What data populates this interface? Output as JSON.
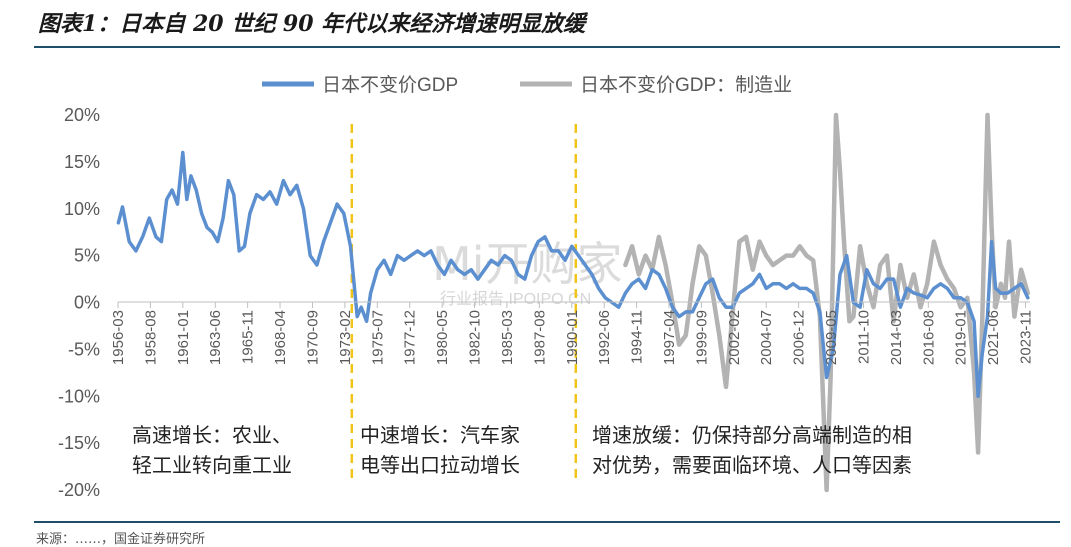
{
  "figure_title": "图表1：日本自 20 世纪 90 年代以来经济增速明显放缓",
  "source_text": "来源：……，国金证券研究所",
  "watermark": {
    "main": "Mi开购家",
    "sub": "行业报告 IPOIPO.CN"
  },
  "colors": {
    "series_gdp": "#5b8fd0",
    "series_mfg": "#b3b3b3",
    "divider": "#f0c419",
    "rule": "#1f4e6b"
  },
  "chart_data": {
    "type": "line",
    "title": "",
    "xlabel": "",
    "ylabel": "",
    "ylim": [
      -20,
      20
    ],
    "y_ticks": [
      "20%",
      "15%",
      "10%",
      "5%",
      "0%",
      "-5%",
      "-10%",
      "-15%",
      "-20%"
    ],
    "x_ticks": [
      "1956-03",
      "1958-08",
      "1961-01",
      "1963-06",
      "1965-11",
      "1968-04",
      "1970-09",
      "1973-02",
      "1975-07",
      "1977-12",
      "1980-05",
      "1982-10",
      "1985-03",
      "1987-08",
      "1990-01",
      "1992-06",
      "1994-11",
      "1997-04",
      "1999-09",
      "2002-02",
      "2004-07",
      "2006-12",
      "2009-05",
      "2011-10",
      "2014-03",
      "2016-08",
      "2019-01",
      "2021-06",
      "2023-11"
    ],
    "x_range": [
      "1956-03",
      "2024-03"
    ],
    "legend_position": "top-center",
    "series": [
      {
        "name": "日本不变价GDP",
        "color": "#5b8fd0",
        "x": [
          1956.2,
          1956.5,
          1957.0,
          1957.5,
          1958.0,
          1958.5,
          1959.0,
          1959.4,
          1959.8,
          1960.2,
          1960.6,
          1961.0,
          1961.3,
          1961.6,
          1962.0,
          1962.4,
          1962.8,
          1963.2,
          1963.6,
          1964.0,
          1964.4,
          1964.8,
          1965.2,
          1965.6,
          1966.0,
          1966.5,
          1967.0,
          1967.5,
          1968.0,
          1968.5,
          1969.0,
          1969.5,
          1970.0,
          1970.5,
          1971.0,
          1971.5,
          1972.0,
          1972.5,
          1973.0,
          1973.5,
          1974.0,
          1974.3,
          1974.7,
          1975.0,
          1975.5,
          1976.0,
          1976.5,
          1977.0,
          1977.5,
          1978.0,
          1978.5,
          1979.0,
          1979.5,
          1980.0,
          1980.5,
          1981.0,
          1981.5,
          1982.0,
          1982.5,
          1983.0,
          1983.5,
          1984.0,
          1984.5,
          1985.0,
          1985.5,
          1986.0,
          1986.5,
          1987.0,
          1987.5,
          1988.0,
          1988.5,
          1989.0,
          1989.5,
          1990.0,
          1990.5,
          1991.0,
          1991.5,
          1992.0,
          1992.5,
          1993.0,
          1993.5,
          1994.0,
          1994.5,
          1995.0,
          1995.5,
          1996.0,
          1996.5,
          1997.0,
          1997.5,
          1998.0,
          1998.5,
          1999.0,
          1999.5,
          2000.0,
          2000.5,
          2001.0,
          2001.5,
          2002.0,
          2002.5,
          2003.0,
          2003.5,
          2004.0,
          2004.5,
          2005.0,
          2005.5,
          2006.0,
          2006.5,
          2007.0,
          2007.5,
          2008.0,
          2008.5,
          2009.0,
          2009.5,
          2010.0,
          2010.5,
          2011.0,
          2011.5,
          2012.0,
          2012.5,
          2013.0,
          2013.5,
          2014.0,
          2014.5,
          2015.0,
          2015.5,
          2016.0,
          2016.5,
          2017.0,
          2017.5,
          2018.0,
          2018.5,
          2019.0,
          2019.5,
          2020.0,
          2020.3,
          2020.6,
          2021.0,
          2021.3,
          2021.6,
          2022.0,
          2022.5,
          2023.0,
          2023.5,
          2024.0
        ],
        "y": [
          8.5,
          10.2,
          6.5,
          5.5,
          7.0,
          9.0,
          7.0,
          6.5,
          11.0,
          12.0,
          10.5,
          16.0,
          11.0,
          13.5,
          12.0,
          9.5,
          8.0,
          7.5,
          6.5,
          9.0,
          13.0,
          11.5,
          5.5,
          6.0,
          9.5,
          11.5,
          11.0,
          11.8,
          10.5,
          13.0,
          11.5,
          12.5,
          10.0,
          5.0,
          4.0,
          6.5,
          8.5,
          10.5,
          9.5,
          6.0,
          -1.5,
          -0.5,
          -2.0,
          1.0,
          3.5,
          4.5,
          3.0,
          5.0,
          4.5,
          5.0,
          5.5,
          5.0,
          5.5,
          4.0,
          3.0,
          4.5,
          3.5,
          3.0,
          3.5,
          2.5,
          3.5,
          4.5,
          4.0,
          5.0,
          4.5,
          3.0,
          2.5,
          5.0,
          6.5,
          7.0,
          5.5,
          5.5,
          4.5,
          6.0,
          5.0,
          4.0,
          3.0,
          1.5,
          0.5,
          0.0,
          -0.5,
          1.0,
          2.0,
          2.5,
          1.5,
          3.5,
          3.0,
          1.5,
          -0.5,
          -1.5,
          -1.0,
          -1.0,
          0.5,
          2.0,
          2.5,
          0.5,
          -0.5,
          -0.5,
          1.0,
          1.5,
          2.0,
          3.0,
          1.5,
          2.0,
          2.0,
          1.5,
          2.0,
          1.5,
          1.5,
          1.0,
          -1.0,
          -8.0,
          -5.0,
          3.0,
          5.0,
          0.0,
          -0.5,
          3.5,
          2.0,
          1.5,
          2.5,
          2.5,
          -0.5,
          1.5,
          1.0,
          0.8,
          0.5,
          1.5,
          2.0,
          1.5,
          0.5,
          0.5,
          0.0,
          -2.0,
          -10.0,
          -5.5,
          -1.5,
          6.5,
          1.5,
          1.0,
          1.0,
          1.5,
          2.0,
          0.5
        ]
      },
      {
        "name": "日本不变价GDP：制造业",
        "color": "#b3b3b3",
        "x": [
          1994.0,
          1994.5,
          1995.0,
          1995.5,
          1996.0,
          1996.5,
          1997.0,
          1997.5,
          1998.0,
          1998.5,
          1999.0,
          1999.5,
          2000.0,
          2000.5,
          2001.0,
          2001.5,
          2002.0,
          2002.5,
          2003.0,
          2003.5,
          2004.0,
          2004.5,
          2005.0,
          2005.5,
          2006.0,
          2006.5,
          2007.0,
          2007.5,
          2008.0,
          2008.5,
          2009.0,
          2009.3,
          2009.7,
          2010.0,
          2010.3,
          2010.7,
          2011.0,
          2011.5,
          2012.0,
          2012.5,
          2013.0,
          2013.5,
          2014.0,
          2014.5,
          2015.0,
          2015.5,
          2016.0,
          2016.5,
          2017.0,
          2017.5,
          2018.0,
          2018.5,
          2019.0,
          2019.5,
          2020.0,
          2020.3,
          2020.6,
          2021.0,
          2021.3,
          2021.6,
          2022.0,
          2022.3,
          2022.6,
          2023.0,
          2023.5,
          2024.0
        ],
        "y": [
          4.0,
          6.0,
          3.0,
          5.0,
          3.5,
          7.0,
          4.0,
          0.0,
          -4.5,
          -3.5,
          2.0,
          6.0,
          5.0,
          1.0,
          -3.5,
          -9.0,
          -1.0,
          6.5,
          7.0,
          3.5,
          6.5,
          5.0,
          4.0,
          4.5,
          5.0,
          5.0,
          6.0,
          5.0,
          4.5,
          -1.5,
          -20.0,
          -8.0,
          20.0,
          14.0,
          6.5,
          -2.0,
          -1.5,
          6.0,
          2.0,
          -0.5,
          4.0,
          5.0,
          -2.0,
          4.0,
          0.5,
          3.0,
          -0.5,
          2.0,
          6.5,
          4.0,
          2.5,
          1.5,
          -0.5,
          0.5,
          -7.5,
          -16.0,
          -2.0,
          21.0,
          8.0,
          -0.5,
          2.0,
          0.5,
          6.5,
          -1.5,
          3.5,
          1.0
        ]
      }
    ],
    "dividers": [
      1973.6,
      1990.3
    ],
    "phase_labels": [
      [
        "高速增长：农业、",
        "轻工业转向重工业"
      ],
      [
        "中速增长：汽车家",
        "电等出口拉动增长"
      ],
      [
        "增速放缓：仍保持部分高端制造的相",
        "对优势，需要面临环境、人口等因素"
      ]
    ]
  }
}
